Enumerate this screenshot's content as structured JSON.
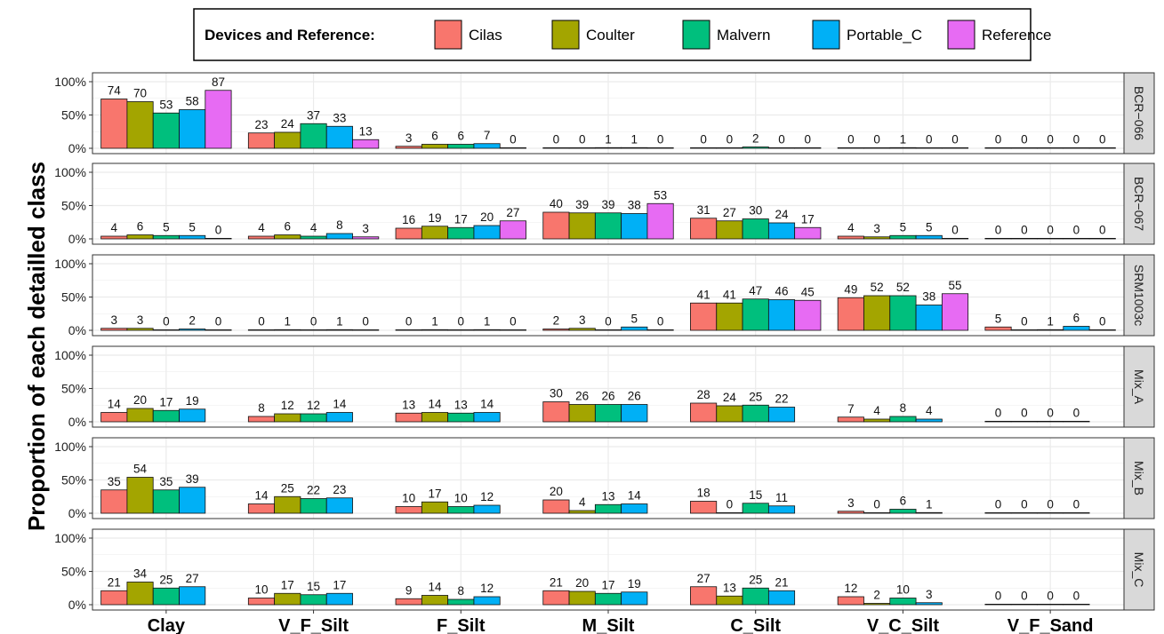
{
  "chart_data": {
    "type": "bar",
    "ylabel": "Proportion of each detailled class",
    "legend": {
      "title": "Devices and Reference:",
      "placement": "top",
      "entries": [
        "Cilas",
        "Coulter",
        "Malvern",
        "Portable_C",
        "Reference"
      ]
    },
    "colors": {
      "Cilas": "#F8766D",
      "Coulter": "#A3A500",
      "Malvern": "#00BF7D",
      "Portable_C": "#00B0F6",
      "Reference": "#E76BF3"
    },
    "categories": [
      "Clay",
      "V_F_Silt",
      "F_Silt",
      "M_Silt",
      "C_Silt",
      "V_C_Silt",
      "V_F_Sand"
    ],
    "ylim": [
      0,
      100
    ],
    "yticks": [
      "0%",
      "50%",
      "100%"
    ],
    "grid": true,
    "panels": [
      {
        "name": "BCR−066",
        "series": [
          {
            "name": "Cilas",
            "values": [
              74,
              23,
              3,
              0,
              0,
              0,
              0
            ]
          },
          {
            "name": "Coulter",
            "values": [
              70,
              24,
              6,
              0,
              0,
              0,
              0
            ]
          },
          {
            "name": "Malvern",
            "values": [
              53,
              37,
              6,
              1,
              2,
              1,
              0
            ]
          },
          {
            "name": "Portable_C",
            "values": [
              58,
              33,
              7,
              1,
              0,
              0,
              0
            ]
          },
          {
            "name": "Reference",
            "values": [
              87,
              13,
              0,
              0,
              0,
              0,
              0
            ]
          }
        ]
      },
      {
        "name": "BCR−067",
        "series": [
          {
            "name": "Cilas",
            "values": [
              4,
              4,
              16,
              40,
              31,
              4,
              0
            ]
          },
          {
            "name": "Coulter",
            "values": [
              6,
              6,
              19,
              39,
              27,
              3,
              0
            ]
          },
          {
            "name": "Malvern",
            "values": [
              5,
              4,
              17,
              39,
              30,
              5,
              0
            ]
          },
          {
            "name": "Portable_C",
            "values": [
              5,
              8,
              20,
              38,
              24,
              5,
              0
            ]
          },
          {
            "name": "Reference",
            "values": [
              0,
              3,
              27,
              53,
              17,
              0,
              0
            ]
          }
        ]
      },
      {
        "name": "SRM1003c",
        "series": [
          {
            "name": "Cilas",
            "values": [
              3,
              0,
              0,
              2,
              41,
              49,
              5
            ]
          },
          {
            "name": "Coulter",
            "values": [
              3,
              1,
              1,
              3,
              41,
              52,
              0
            ]
          },
          {
            "name": "Malvern",
            "values": [
              0,
              0,
              0,
              0,
              47,
              52,
              1
            ]
          },
          {
            "name": "Portable_C",
            "values": [
              2,
              1,
              1,
              5,
              46,
              38,
              6
            ]
          },
          {
            "name": "Reference",
            "values": [
              0,
              0,
              0,
              0,
              45,
              55,
              0
            ]
          }
        ]
      },
      {
        "name": "Mix_A",
        "series": [
          {
            "name": "Cilas",
            "values": [
              14,
              8,
              13,
              30,
              28,
              7,
              0
            ]
          },
          {
            "name": "Coulter",
            "values": [
              20,
              12,
              14,
              26,
              24,
              4,
              0
            ]
          },
          {
            "name": "Malvern",
            "values": [
              17,
              12,
              13,
              26,
              25,
              8,
              0
            ]
          },
          {
            "name": "Portable_C",
            "values": [
              19,
              14,
              14,
              26,
              22,
              4,
              0
            ]
          }
        ]
      },
      {
        "name": "Mix_B",
        "series": [
          {
            "name": "Cilas",
            "values": [
              35,
              14,
              10,
              20,
              18,
              3,
              0
            ]
          },
          {
            "name": "Coulter",
            "values": [
              54,
              25,
              17,
              4,
              0,
              0,
              0
            ]
          },
          {
            "name": "Malvern",
            "values": [
              35,
              22,
              10,
              13,
              15,
              6,
              0
            ]
          },
          {
            "name": "Portable_C",
            "values": [
              39,
              23,
              12,
              14,
              11,
              1,
              0
            ]
          }
        ]
      },
      {
        "name": "Mix_C",
        "series": [
          {
            "name": "Cilas",
            "values": [
              21,
              10,
              9,
              21,
              27,
              12,
              0
            ]
          },
          {
            "name": "Coulter",
            "values": [
              34,
              17,
              14,
              20,
              13,
              2,
              0
            ]
          },
          {
            "name": "Malvern",
            "values": [
              25,
              15,
              8,
              17,
              25,
              10,
              0
            ]
          },
          {
            "name": "Portable_C",
            "values": [
              27,
              17,
              12,
              19,
              21,
              3,
              0
            ]
          }
        ]
      }
    ]
  }
}
